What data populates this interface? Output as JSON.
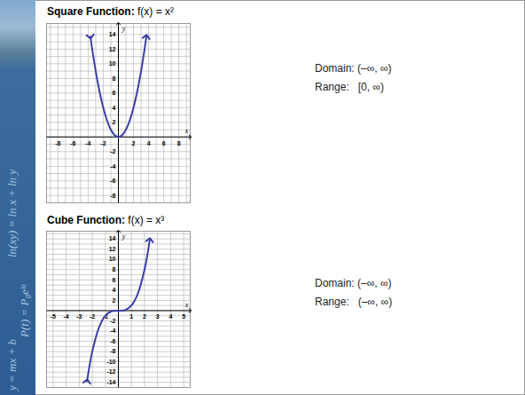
{
  "sidebar": {
    "formulas": [
      "ln(xy) = ln x + ln y",
      "P(t) = P₀eᵏᵗ",
      "y = mx + b"
    ]
  },
  "chart_data": [
    {
      "type": "line",
      "title": "Square Function: f(x) = x²",
      "xlabel": "x",
      "ylabel": "y",
      "x": [
        -3.7,
        -3.5,
        -3,
        -2.5,
        -2,
        -1.5,
        -1,
        -0.5,
        0,
        0.5,
        1,
        1.5,
        2,
        2.5,
        3,
        3.5,
        3.7
      ],
      "values": [
        13.7,
        12.25,
        9,
        6.25,
        4,
        2.25,
        1,
        0.25,
        0,
        0.25,
        1,
        2.25,
        4,
        6.25,
        9,
        12.25,
        13.7
      ],
      "color": "#3a3ea8",
      "marker": "arrow",
      "grid": true,
      "xlim": [
        -9.5,
        9.5
      ],
      "ylim": [
        -9,
        15.5
      ],
      "xticks": [
        -8,
        -6,
        -4,
        -2,
        2,
        4,
        6,
        8
      ],
      "yticks": [
        -8,
        -6,
        -4,
        -2,
        2,
        4,
        6,
        8,
        10,
        12,
        14
      ],
      "annotations": [
        "Domain: (–∞, ∞)",
        "Range:   [0, ∞)"
      ]
    },
    {
      "type": "line",
      "title": "Cube Function: f(x) = x³",
      "xlabel": "x",
      "ylabel": "y",
      "x": [
        -2.4,
        -2.2,
        -2,
        -1.5,
        -1,
        -0.5,
        0,
        0.5,
        1,
        1.5,
        2,
        2.2,
        2.4
      ],
      "values": [
        -13.8,
        -10.6,
        -8,
        -3.4,
        -1,
        -0.1,
        0,
        0.1,
        1,
        3.4,
        8,
        10.6,
        13.8
      ],
      "color": "#3a3ea8",
      "marker": "arrow",
      "grid": true,
      "xlim": [
        -5.5,
        5.5
      ],
      "ylim": [
        -15,
        15.5
      ],
      "xticks": [
        -5,
        -4,
        -3,
        -2,
        -1,
        1,
        2,
        3,
        4,
        5
      ],
      "yticks": [
        -14,
        -12,
        -10,
        -8,
        -6,
        -4,
        -2,
        2,
        4,
        6,
        8,
        10,
        12,
        14
      ],
      "annotations": [
        "Domain: (–∞, ∞)",
        "Range:   (–∞, ∞)"
      ]
    }
  ]
}
